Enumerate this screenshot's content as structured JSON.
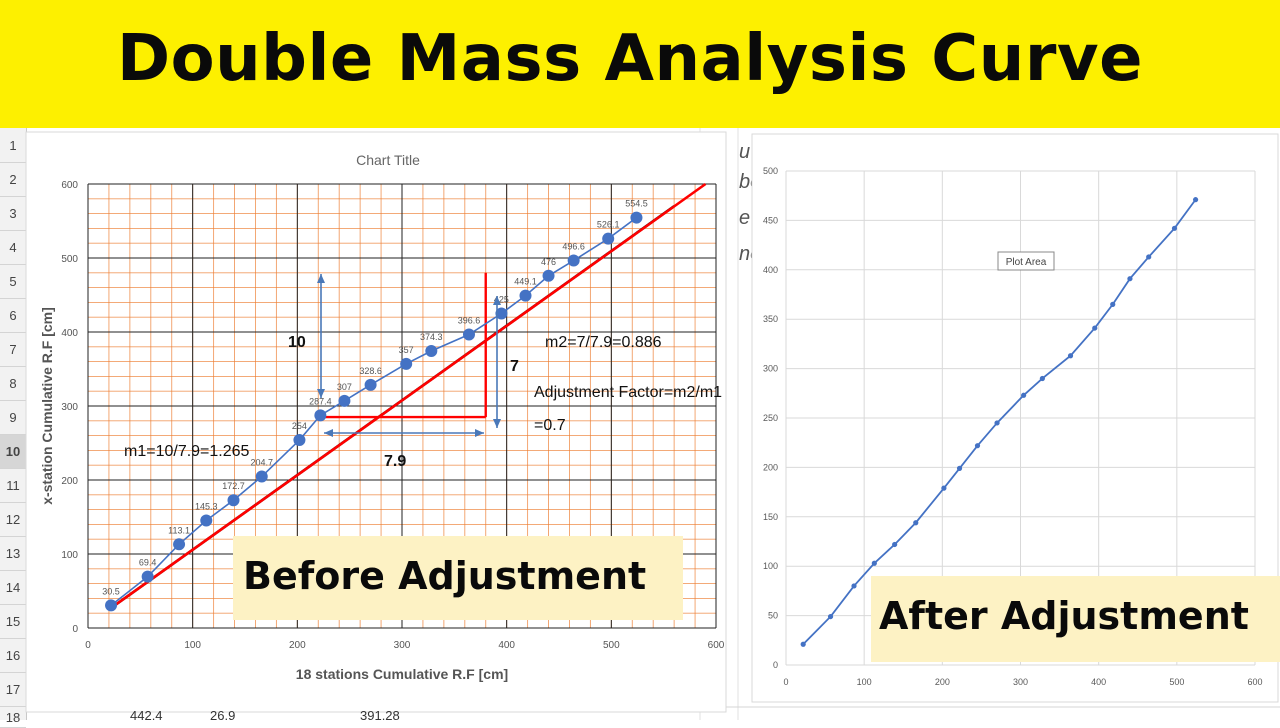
{
  "page": {
    "title": "Double Mass Analysis Curve"
  },
  "sheet": {
    "row_numbers": [
      "1",
      "2",
      "3",
      "4",
      "5",
      "6",
      "7",
      "8",
      "9",
      "10",
      "11",
      "12",
      "13",
      "14",
      "15",
      "16",
      "17",
      "18"
    ],
    "selected_row": "10",
    "bottom_row_values": [
      "442.4",
      "26.9",
      "391.28"
    ],
    "partial_side_glyphs": [
      "u",
      "be",
      "e",
      "ne"
    ]
  },
  "callouts": {
    "before": "Before Adjustment",
    "after": "After Adjustment"
  },
  "chart_data": [
    {
      "type": "scatter",
      "title": "Chart Title",
      "xlabel": "18 stations Cumulative R.F [cm]",
      "ylabel": "x-station Cumulative R.F [cm]",
      "xlim": [
        0,
        600
      ],
      "ylim": [
        0,
        600
      ],
      "xticks": [
        "0",
        "100",
        "200",
        "300",
        "400",
        "500",
        "600"
      ],
      "yticks": [
        "0",
        "100",
        "200",
        "300",
        "400",
        "500",
        "600"
      ],
      "grid": true,
      "series": [
        {
          "values": [
            [
              22,
              30.5
            ],
            [
              57,
              69.4
            ],
            [
              87,
              113.1
            ],
            [
              113,
              145.3
            ],
            [
              139,
              172.7
            ],
            [
              166,
              204.7
            ],
            [
              202,
              254
            ],
            [
              222,
              287.4
            ],
            [
              245,
              307
            ],
            [
              270,
              328.6
            ],
            [
              304,
              357
            ],
            [
              328,
              374.3
            ],
            [
              364,
              396.6
            ],
            [
              395,
              425
            ],
            [
              418,
              449.1
            ],
            [
              440,
              476
            ],
            [
              464,
              496.6
            ],
            [
              497,
              526.1
            ],
            [
              524,
              554.5
            ]
          ],
          "point_labels": [
            "30.5",
            "69.4",
            "113.1",
            "145.3",
            "172.7",
            "204.7",
            "254",
            "287.4",
            "307",
            "328.6",
            "357",
            "374.3",
            "396.6",
            "425",
            "449.1",
            "476",
            "496.6",
            "526.1",
            "554.5"
          ],
          "color": "#4472c4"
        }
      ],
      "trend_lines": [
        {
          "from": [
            20,
            25
          ],
          "to": [
            560,
            570
          ],
          "color": "#000000"
        },
        {
          "from": [
            20,
            25
          ],
          "to": [
            590,
            600
          ],
          "color": "#ff0000"
        }
      ],
      "annotations": {
        "rise_before": "10",
        "run_before": "7.9",
        "slope_before": "m1=10/7.9=1.265",
        "rise_after": "7",
        "slope_after": "m2=7/7.9=0.886",
        "adjustment_factor": "Adjustment Factor=m2/m1",
        "adjustment_value": "=0.7"
      },
      "triangle": {
        "base_from": [
          222,
          285
        ],
        "base_to": [
          380,
          285
        ],
        "apex": [
          380,
          480
        ]
      },
      "gridline_color": "#ed7d31"
    },
    {
      "type": "line",
      "title": "",
      "xlim": [
        0,
        600
      ],
      "ylim": [
        0,
        500
      ],
      "xticks": [
        "0",
        "100",
        "200",
        "300",
        "400",
        "500",
        "600"
      ],
      "yticks": [
        "0",
        "50",
        "100",
        "150",
        "200",
        "250",
        "300",
        "350",
        "400",
        "450",
        "500"
      ],
      "grid": true,
      "tooltip": "Plot Area",
      "series": [
        {
          "values": [
            [
              22,
              21
            ],
            [
              57,
              49
            ],
            [
              87,
              80
            ],
            [
              113,
              103
            ],
            [
              139,
              122
            ],
            [
              166,
              144
            ],
            [
              202,
              179
            ],
            [
              222,
              199
            ],
            [
              245,
              222
            ],
            [
              270,
              245
            ],
            [
              304,
              273
            ],
            [
              328,
              290
            ],
            [
              364,
              313
            ],
            [
              395,
              341
            ],
            [
              418,
              365
            ],
            [
              440,
              391
            ],
            [
              464,
              413
            ],
            [
              497,
              442
            ],
            [
              524,
              471
            ]
          ],
          "color": "#4472c4"
        }
      ]
    }
  ]
}
